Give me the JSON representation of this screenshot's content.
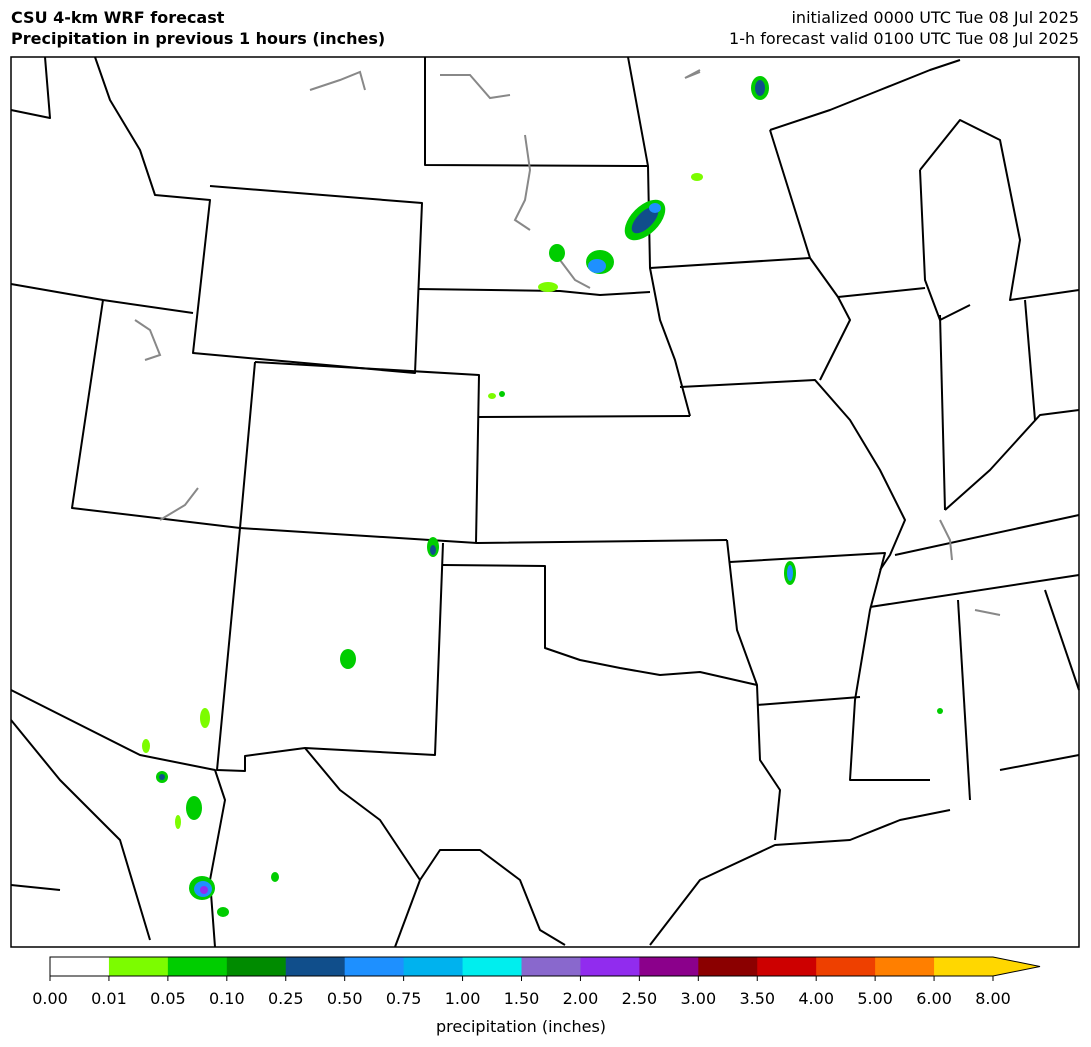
{
  "header": {
    "title": "CSU 4-km WRF forecast",
    "subtitle": "Precipitation in previous 1 hours (inches)",
    "init": "initialized 0000 UTC Tue 08 Jul 2025",
    "valid": "1-h forecast valid 0100 UTC Tue 08 Jul 2025"
  },
  "colorbar": {
    "label": "precipitation (inches)",
    "ticks": [
      {
        "value": 0,
        "label": "0.00"
      },
      {
        "value": 0.01,
        "label": "0.01"
      },
      {
        "value": 0.05,
        "label": "0.05"
      },
      {
        "value": 0.1,
        "label": "0.10"
      },
      {
        "value": 0.25,
        "label": "0.25"
      },
      {
        "value": 0.5,
        "label": "0.50"
      },
      {
        "value": 0.75,
        "label": "0.75"
      },
      {
        "value": 1,
        "label": "1.00"
      },
      {
        "value": 1.5,
        "label": "1.50"
      },
      {
        "value": 2,
        "label": "2.00"
      },
      {
        "value": 2.5,
        "label": "2.50"
      },
      {
        "value": 3,
        "label": "3.00"
      },
      {
        "value": 3.5,
        "label": "3.50"
      },
      {
        "value": 4,
        "label": "4.00"
      },
      {
        "value": 5,
        "label": "5.00"
      },
      {
        "value": 6,
        "label": "6.00"
      },
      {
        "value": 8,
        "label": "8.00"
      }
    ],
    "colors": [
      "#ffffff",
      "#7cfc00",
      "#00cd00",
      "#008b00",
      "#104e8b",
      "#1e90ff",
      "#00b2ee",
      "#00eeee",
      "#8968cd",
      "#912cee",
      "#8b008b",
      "#8b0000",
      "#cd0000",
      "#ee4000",
      "#ff7f00",
      "#ffd700"
    ],
    "extend_color": "#ffd700"
  }
}
